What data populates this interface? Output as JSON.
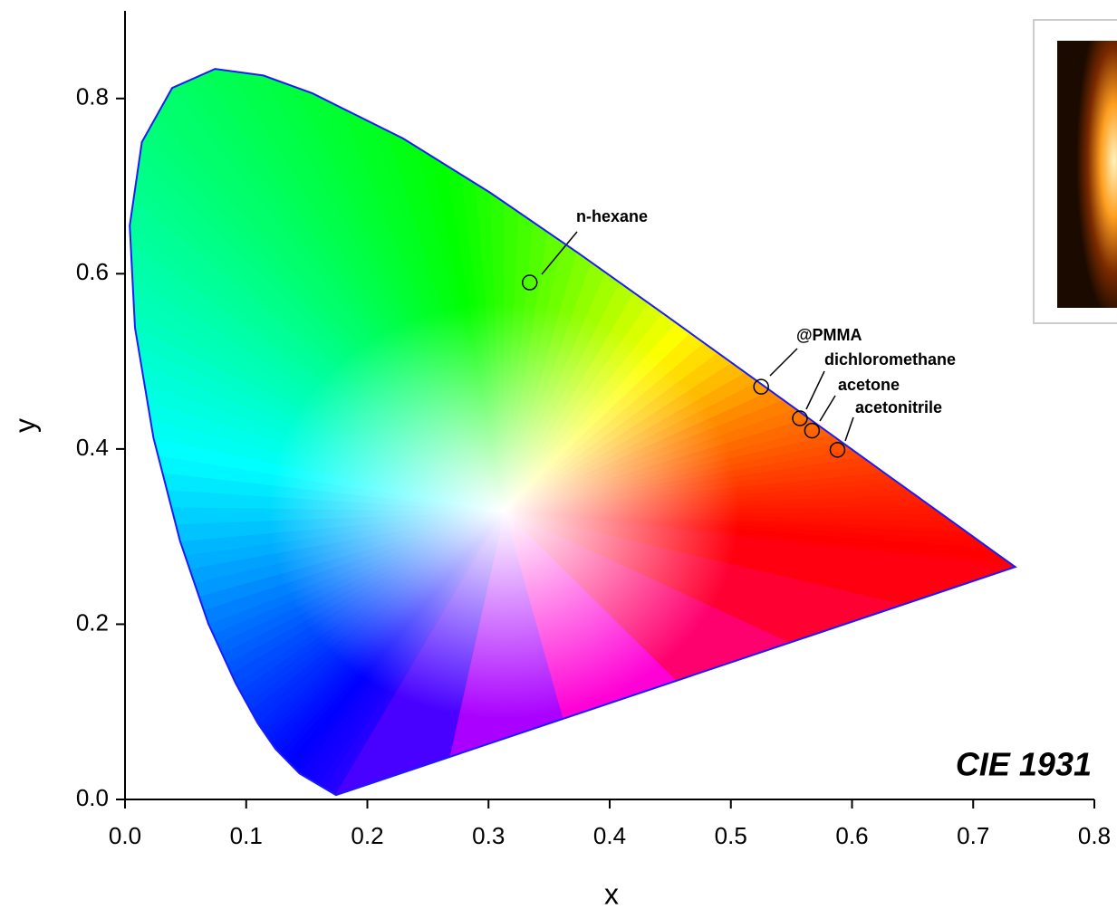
{
  "chart_data": {
    "type": "scatter",
    "title": "CIE 1931",
    "x_label": "x",
    "y_label": "y",
    "xlim": [
      0,
      0.8
    ],
    "ylim": [
      0,
      0.9
    ],
    "xticks": [
      {
        "value": 0,
        "label": "0.0"
      },
      0.1,
      0.2,
      0.3,
      0.4,
      0.5,
      0.6,
      0.7,
      0.8
    ],
    "yticks": [
      {
        "value": 0,
        "label": "0.0"
      },
      0.2,
      0.4,
      0.6,
      0.8
    ],
    "labels": [
      "n-hexane",
      "@PMMA",
      "dichloromethane",
      "acetone",
      "acetonitrile"
    ],
    "x": [
      0.334,
      0.525,
      0.557,
      0.567,
      0.588
    ],
    "y": [
      0.59,
      0.471,
      0.435,
      0.421,
      0.399
    ],
    "marker_color": "#000000",
    "locus": {
      "x": [
        0.1741,
        0.144,
        0.1241,
        0.1096,
        0.0913,
        0.0687,
        0.0454,
        0.0235,
        0.0082,
        0.0039,
        0.0139,
        0.0389,
        0.0743,
        0.1142,
        0.1547,
        0.2296,
        0.3016,
        0.3731,
        0.4441,
        0.5125,
        0.5752,
        0.627,
        0.6658,
        0.6915,
        0.719,
        0.7347
      ],
      "y": [
        0.005,
        0.0297,
        0.0578,
        0.0868,
        0.1327,
        0.2007,
        0.295,
        0.4127,
        0.5384,
        0.6548,
        0.7502,
        0.812,
        0.8338,
        0.8262,
        0.8059,
        0.7543,
        0.6923,
        0.6245,
        0.5547,
        0.4866,
        0.4242,
        0.3725,
        0.334,
        0.3083,
        0.2809,
        0.2653
      ],
      "color": "#1a1aff"
    }
  }
}
